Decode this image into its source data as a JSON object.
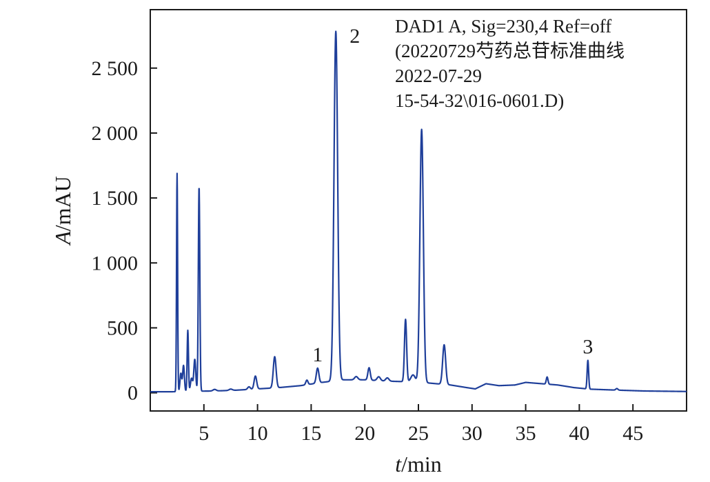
{
  "chart_data": {
    "type": "line",
    "xlabel_var": "t",
    "xlabel_unit": "/min",
    "ylabel_var": "A",
    "ylabel_unit": "/mAU",
    "xlim": [
      0,
      50
    ],
    "ylim": [
      -140,
      2950
    ],
    "xticks": [
      5,
      10,
      15,
      20,
      25,
      30,
      35,
      40,
      45
    ],
    "xtick_labels": [
      "5",
      "10",
      "15",
      "20",
      "25",
      "30",
      "35",
      "40",
      "45"
    ],
    "yticks": [
      0,
      500,
      1000,
      1500,
      2000,
      2500
    ],
    "ytick_labels": [
      "0",
      "500",
      "1 000",
      "1 500",
      "2 000",
      "2 500"
    ],
    "grid": false,
    "line_color": "#1f3f9a",
    "annotation_lines": [
      "DAD1 A, Sig=230,4 Ref=off",
      "(20220729芍药总苷标准曲线",
      "2022-07-29",
      "15-54-32\\016-0601.D)"
    ],
    "peak_labels": [
      {
        "label": "1",
        "x": 15.6,
        "y": 190
      },
      {
        "label": "2",
        "x": 17.3,
        "y": 2790
      },
      {
        "label": "3",
        "x": 40.8,
        "y": 250
      }
    ],
    "baseline": [
      [
        0,
        8
      ],
      [
        2.0,
        8
      ],
      [
        4.0,
        12
      ],
      [
        6.0,
        14
      ],
      [
        8.0,
        20
      ],
      [
        10.0,
        30
      ],
      [
        12.0,
        40
      ],
      [
        14.0,
        55
      ],
      [
        16.0,
        80
      ],
      [
        18.0,
        100
      ],
      [
        20.0,
        100
      ],
      [
        22.0,
        90
      ],
      [
        24.0,
        85
      ],
      [
        26.0,
        75
      ],
      [
        28.0,
        60
      ],
      [
        29.5,
        40
      ],
      [
        30.3,
        30
      ],
      [
        31.3,
        70
      ],
      [
        32.5,
        55
      ],
      [
        34.0,
        60
      ],
      [
        35.0,
        80
      ],
      [
        36.5,
        70
      ],
      [
        38.0,
        60
      ],
      [
        39.5,
        40
      ],
      [
        41.0,
        28
      ],
      [
        43.0,
        22
      ],
      [
        46.0,
        14
      ],
      [
        50.0,
        10
      ]
    ],
    "peaks": [
      {
        "t": 2.5,
        "h": 1680,
        "w": 0.05
      },
      {
        "t": 2.85,
        "h": 140,
        "w": 0.08
      },
      {
        "t": 3.1,
        "h": 200,
        "w": 0.08
      },
      {
        "t": 3.5,
        "h": 470,
        "w": 0.06
      },
      {
        "t": 3.85,
        "h": 100,
        "w": 0.1
      },
      {
        "t": 4.15,
        "h": 245,
        "w": 0.09
      },
      {
        "t": 4.55,
        "h": 1575,
        "w": 0.07
      },
      {
        "t": 6.0,
        "h": 12,
        "w": 0.15
      },
      {
        "t": 7.5,
        "h": 10,
        "w": 0.15
      },
      {
        "t": 9.2,
        "h": 20,
        "w": 0.12
      },
      {
        "t": 9.8,
        "h": 100,
        "w": 0.12
      },
      {
        "t": 11.6,
        "h": 240,
        "w": 0.13
      },
      {
        "t": 14.6,
        "h": 35,
        "w": 0.1
      },
      {
        "t": 15.6,
        "h": 115,
        "w": 0.12
      },
      {
        "t": 17.3,
        "h": 2690,
        "w": 0.17
      },
      {
        "t": 19.2,
        "h": 25,
        "w": 0.15
      },
      {
        "t": 20.4,
        "h": 95,
        "w": 0.11
      },
      {
        "t": 21.3,
        "h": 30,
        "w": 0.15
      },
      {
        "t": 22.1,
        "h": 25,
        "w": 0.15
      },
      {
        "t": 23.8,
        "h": 480,
        "w": 0.1
      },
      {
        "t": 24.5,
        "h": 55,
        "w": 0.2
      },
      {
        "t": 25.3,
        "h": 1950,
        "w": 0.16
      },
      {
        "t": 27.4,
        "h": 305,
        "w": 0.14
      },
      {
        "t": 37.0,
        "h": 55,
        "w": 0.08
      },
      {
        "t": 40.8,
        "h": 220,
        "w": 0.07
      },
      {
        "t": 43.5,
        "h": 12,
        "w": 0.1
      }
    ]
  }
}
